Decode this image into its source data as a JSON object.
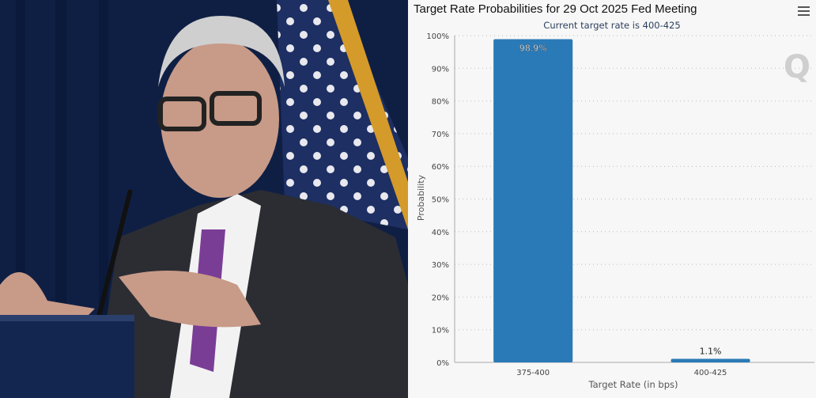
{
  "chart_data": {
    "type": "bar",
    "title": "Target Rate Probabilities for 29 Oct 2025 Fed Meeting",
    "subtitle": "Current target rate is 400-425",
    "categories": [
      "375-400",
      "400-425"
    ],
    "values": [
      98.9,
      1.1
    ],
    "data_labels": [
      "98.9%",
      "1.1%"
    ],
    "xlabel": "Target Rate (in bps)",
    "ylabel": "Probability",
    "ylim": [
      0,
      100
    ],
    "yticks": [
      0,
      10,
      20,
      30,
      40,
      50,
      60,
      70,
      80,
      90,
      100
    ],
    "ytick_labels": [
      "0%",
      "10%",
      "20%",
      "30%",
      "40%",
      "50%",
      "60%",
      "70%",
      "80%",
      "90%",
      "100%"
    ],
    "grid": true,
    "bar_color": "#2a7ab7"
  }
}
